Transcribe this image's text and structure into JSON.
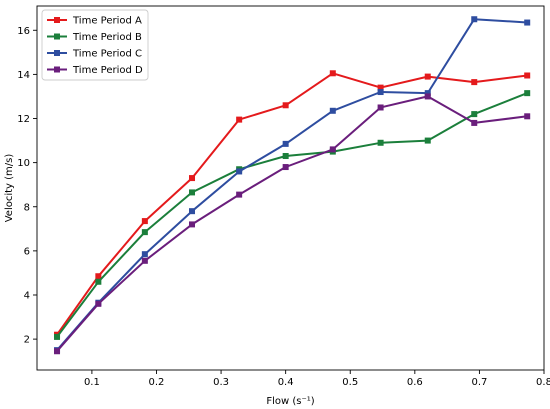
{
  "chart_data": {
    "type": "line",
    "title": "",
    "xlabel": "Flow (s⁻¹)",
    "ylabel": "Velocity (m/s)",
    "xlim": [
      0.015,
      0.8
    ],
    "ylim": [
      0.6,
      17.1
    ],
    "xticks": [
      0.1,
      0.2,
      0.3,
      0.4,
      0.5,
      0.6,
      0.7,
      0.8
    ],
    "xtick_labels": [
      "0.1",
      "0.2",
      "0.3",
      "0.4",
      "0.5",
      "0.6",
      "0.7",
      "0.8"
    ],
    "yticks": [
      2,
      4,
      6,
      8,
      10,
      12,
      14,
      16
    ],
    "ytick_labels": [
      "2",
      "4",
      "6",
      "8",
      "10",
      "12",
      "14",
      "16"
    ],
    "grid": false,
    "legend_position": "top-left",
    "x": [
      0.046,
      0.11,
      0.182,
      0.255,
      0.328,
      0.4,
      0.473,
      0.547,
      0.62,
      0.692,
      0.774
    ],
    "series": [
      {
        "name": "Time Period A",
        "color": "#e41a1c",
        "values": [
          2.2,
          4.85,
          7.35,
          9.3,
          11.95,
          12.6,
          14.05,
          13.4,
          13.9,
          13.65,
          13.95
        ]
      },
      {
        "name": "Time Period B",
        "color": "#1b7f3b",
        "values": [
          2.1,
          4.6,
          6.85,
          8.65,
          9.7,
          10.3,
          10.5,
          10.9,
          11.0,
          12.2,
          13.15
        ]
      },
      {
        "name": "Time Period C",
        "color": "#2e4da0",
        "values": [
          1.5,
          3.65,
          5.85,
          7.8,
          9.6,
          10.85,
          12.35,
          13.2,
          13.15,
          16.5,
          16.35
        ]
      },
      {
        "name": "Time Period D",
        "color": "#6a1e7c",
        "values": [
          1.45,
          3.6,
          5.55,
          7.2,
          8.55,
          9.8,
          10.6,
          12.5,
          13.0,
          11.8,
          12.1
        ]
      }
    ]
  }
}
